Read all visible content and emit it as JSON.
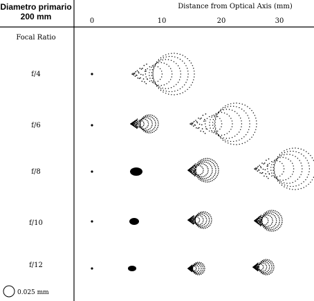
{
  "header": {
    "title_line1": "Diametro primario",
    "title_line2": "200 mm",
    "axis_title": "Distance from Optical Axis (mm)",
    "row_header": "Focal Ratio",
    "ticks": [
      "0",
      "10",
      "20",
      "30"
    ]
  },
  "rows": [
    {
      "label": "f/4"
    },
    {
      "label": "f/6"
    },
    {
      "label": "f/8"
    },
    {
      "label": "f/10"
    },
    {
      "label": "f/12"
    }
  ],
  "scale": {
    "label": "0.025 mm"
  },
  "colors": {
    "ink": "#000000",
    "background": "#ffffff"
  }
}
